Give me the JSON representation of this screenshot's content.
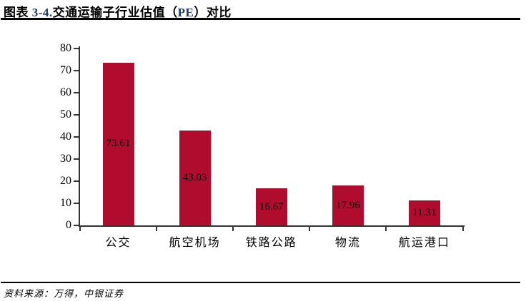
{
  "title": {
    "part_prefix": "图表 ",
    "part_number": "3-4.",
    "part_main": "交通运输子行业估值（",
    "part_pe": "PE",
    "part_suffix": "）对比"
  },
  "source": {
    "text": "资料来源：万得，中银证券"
  },
  "colors": {
    "bar": "#B00D2E",
    "accent": "#1F3864",
    "axis": "#333333"
  },
  "chart_data": {
    "type": "bar",
    "title": "交通运输子行业估值（PE）对比",
    "categories": [
      "公交",
      "航空机场",
      "铁路公路",
      "物流",
      "航运港口"
    ],
    "values": [
      73.61,
      43.03,
      16.67,
      17.96,
      11.31
    ],
    "value_label_decimals": 2,
    "value_label_position": "inside-center",
    "xlabel": "",
    "ylabel": "",
    "ylim": [
      0,
      80
    ],
    "ytick_step": 10,
    "grid": false,
    "legend": "none",
    "bar_color": "#B00D2E"
  }
}
